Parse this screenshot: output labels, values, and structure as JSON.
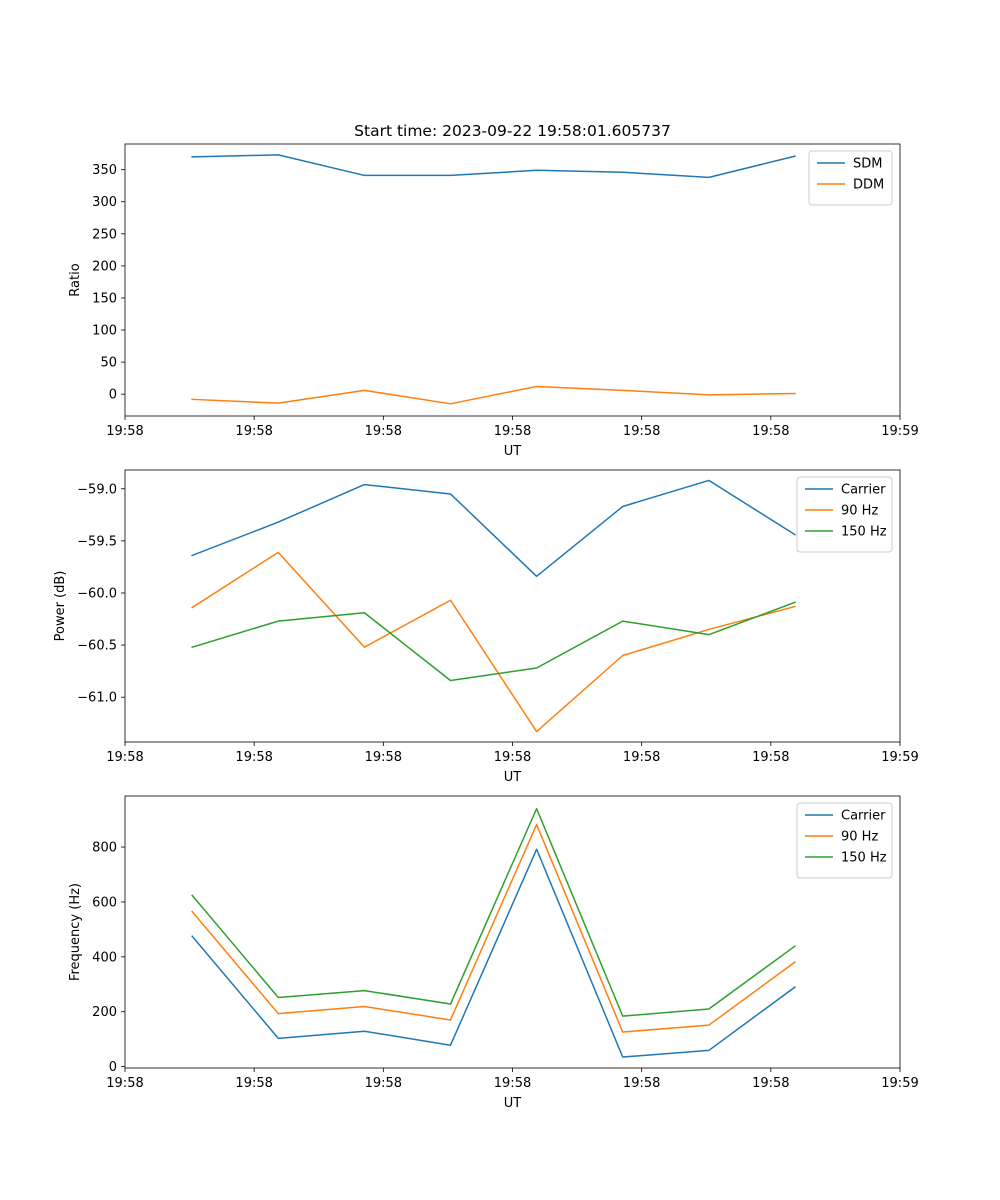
{
  "figure_title": "Start time: 2023-09-22 19:58:01.605737",
  "chart_data": [
    {
      "type": "line",
      "title": "Start time: 2023-09-22 19:58:01.605737",
      "xlabel": "UT",
      "ylabel": "Ratio",
      "x": [
        1,
        2,
        3,
        4,
        5,
        6,
        7,
        8
      ],
      "xlim": [
        0.22,
        9.22
      ],
      "ylim": [
        -34,
        390
      ],
      "xticks": [
        0.22,
        1.72,
        3.22,
        4.72,
        6.22,
        7.72,
        9.22
      ],
      "xtick_labels": [
        "19:58",
        "19:58",
        "19:58",
        "19:58",
        "19:58",
        "19:58",
        "19:59"
      ],
      "yticks": [
        0,
        50,
        100,
        150,
        200,
        250,
        300,
        350
      ],
      "ytick_labels": [
        "0",
        "50",
        "100",
        "150",
        "200",
        "250",
        "300",
        "350"
      ],
      "legend_position": "top-right",
      "series": [
        {
          "name": "SDM",
          "color": "#1f77b4",
          "values": [
            370,
            373,
            341,
            341,
            349,
            346,
            338,
            371
          ]
        },
        {
          "name": "DDM",
          "color": "#ff7f0e",
          "values": [
            -8,
            -14,
            6,
            -15,
            12,
            6,
            -1,
            1
          ]
        }
      ]
    },
    {
      "type": "line",
      "title": "",
      "xlabel": "UT",
      "ylabel": "Power (dB)",
      "x": [
        1,
        2,
        3,
        4,
        5,
        6,
        7,
        8
      ],
      "xlim": [
        0.22,
        9.22
      ],
      "ylim": [
        -61.43,
        -58.82
      ],
      "xticks": [
        0.22,
        1.72,
        3.22,
        4.72,
        6.22,
        7.72,
        9.22
      ],
      "xtick_labels": [
        "19:58",
        "19:58",
        "19:58",
        "19:58",
        "19:58",
        "19:58",
        "19:59"
      ],
      "yticks": [
        -61.0,
        -60.5,
        -60.0,
        -59.5,
        -59.0
      ],
      "ytick_labels": [
        "−61.0",
        "−60.5",
        "−60.0",
        "−59.5",
        "−59.0"
      ],
      "legend_position": "top-right",
      "series": [
        {
          "name": "Carrier",
          "color": "#1f77b4",
          "values": [
            -59.64,
            -59.32,
            -58.96,
            -59.05,
            -59.84,
            -59.17,
            -58.92,
            -59.44
          ]
        },
        {
          "name": "90 Hz",
          "color": "#ff7f0e",
          "values": [
            -60.14,
            -59.61,
            -60.52,
            -60.07,
            -61.33,
            -60.6,
            -60.35,
            -60.13
          ]
        },
        {
          "name": "150 Hz",
          "color": "#2ca02c",
          "values": [
            -60.52,
            -60.27,
            -60.19,
            -60.84,
            -60.72,
            -60.27,
            -60.4,
            -60.09
          ]
        }
      ]
    },
    {
      "type": "line",
      "title": "",
      "xlabel": "UT",
      "ylabel": "Frequency (Hz)",
      "x": [
        1,
        2,
        3,
        4,
        5,
        6,
        7,
        8
      ],
      "xlim": [
        0.22,
        9.22
      ],
      "ylim": [
        -5,
        986
      ],
      "xticks": [
        0.22,
        1.72,
        3.22,
        4.72,
        6.22,
        7.72,
        9.22
      ],
      "xtick_labels": [
        "19:58",
        "19:58",
        "19:58",
        "19:58",
        "19:58",
        "19:58",
        "19:59"
      ],
      "yticks": [
        0,
        200,
        400,
        600,
        800
      ],
      "ytick_labels": [
        "0",
        "200",
        "400",
        "600",
        "800"
      ],
      "legend_position": "top-right",
      "series": [
        {
          "name": "Carrier",
          "color": "#1f77b4",
          "values": [
            475,
            103,
            129,
            78,
            792,
            35,
            59,
            290
          ]
        },
        {
          "name": "90 Hz",
          "color": "#ff7f0e",
          "values": [
            565,
            193,
            219,
            170,
            882,
            126,
            151,
            381
          ]
        },
        {
          "name": "150 Hz",
          "color": "#2ca02c",
          "values": [
            624,
            252,
            277,
            228,
            940,
            184,
            210,
            439
          ]
        }
      ]
    }
  ]
}
